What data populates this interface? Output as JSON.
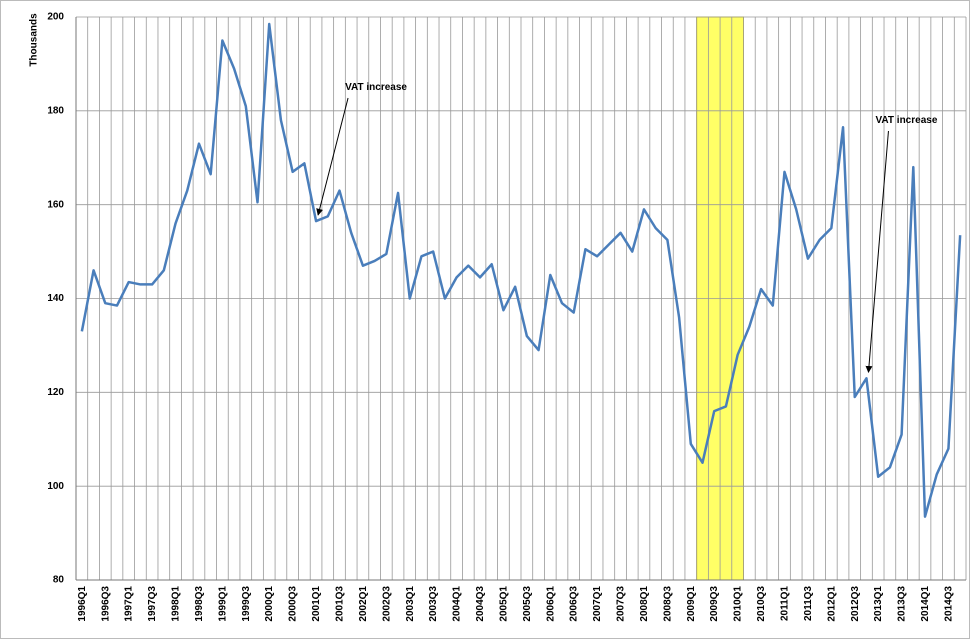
{
  "chart_data": {
    "type": "line",
    "y_label": "Thousands",
    "categories": [
      "1996Q1",
      null,
      "1996Q3",
      null,
      "1997Q1",
      null,
      "1997Q3",
      null,
      "1998Q1",
      null,
      "1998Q3",
      null,
      "1999Q1",
      null,
      "1999Q3",
      null,
      "2000Q1",
      null,
      "2000Q3",
      null,
      "2001Q1",
      null,
      "2001Q3",
      null,
      "2002Q1",
      null,
      "2002Q3",
      null,
      "2003Q1",
      null,
      "2003Q3",
      null,
      "2004Q1",
      null,
      "2004Q3",
      null,
      "2005Q1",
      null,
      "2005Q3",
      null,
      "2006Q1",
      null,
      "2006Q3",
      null,
      "2007Q1",
      null,
      "2007Q3",
      null,
      "2008Q1",
      null,
      "2008Q3",
      null,
      "2009Q1",
      null,
      "2009Q3",
      null,
      "2010Q1",
      null,
      "2010Q3",
      null,
      "2011Q1",
      null,
      "2011Q3",
      null,
      "2012Q1",
      null,
      "2012Q3",
      null,
      "2013Q1",
      null,
      "2013Q3",
      null,
      "2014Q1",
      null,
      "2014Q3",
      null
    ],
    "series": [
      {
        "color": "#4a7ebb",
        "values": [
          133,
          146,
          139,
          138.5,
          143.5,
          143,
          143,
          146,
          156,
          163,
          173,
          166.5,
          195,
          189,
          181,
          160.5,
          198.5,
          178,
          167,
          168.8,
          156.5,
          157.5,
          163,
          154,
          147,
          148,
          149.5,
          162.5,
          140,
          149,
          150,
          140,
          144.5,
          147,
          144.5,
          147.3,
          137.5,
          142.5,
          132,
          129,
          145,
          139,
          137,
          150.5,
          149,
          151.5,
          154,
          150,
          159,
          155,
          152.5,
          136,
          109,
          105,
          116,
          117,
          128,
          134,
          142,
          138.5,
          167,
          159,
          148.5,
          152.5,
          155,
          176.5,
          119,
          123,
          102,
          104,
          111,
          168,
          93.5,
          102.5,
          108,
          153.5
        ]
      }
    ],
    "ylim": [
      80,
      200
    ],
    "yticks": [
      80,
      100,
      120,
      140,
      160,
      180,
      200
    ],
    "grid": true,
    "highlight": {
      "color": "#ffff66",
      "categories": [
        53,
        56
      ]
    },
    "annotations": [
      {
        "text": "VAT increase",
        "point": 20
      },
      {
        "text": "VAT increase",
        "point": 67
      }
    ]
  }
}
